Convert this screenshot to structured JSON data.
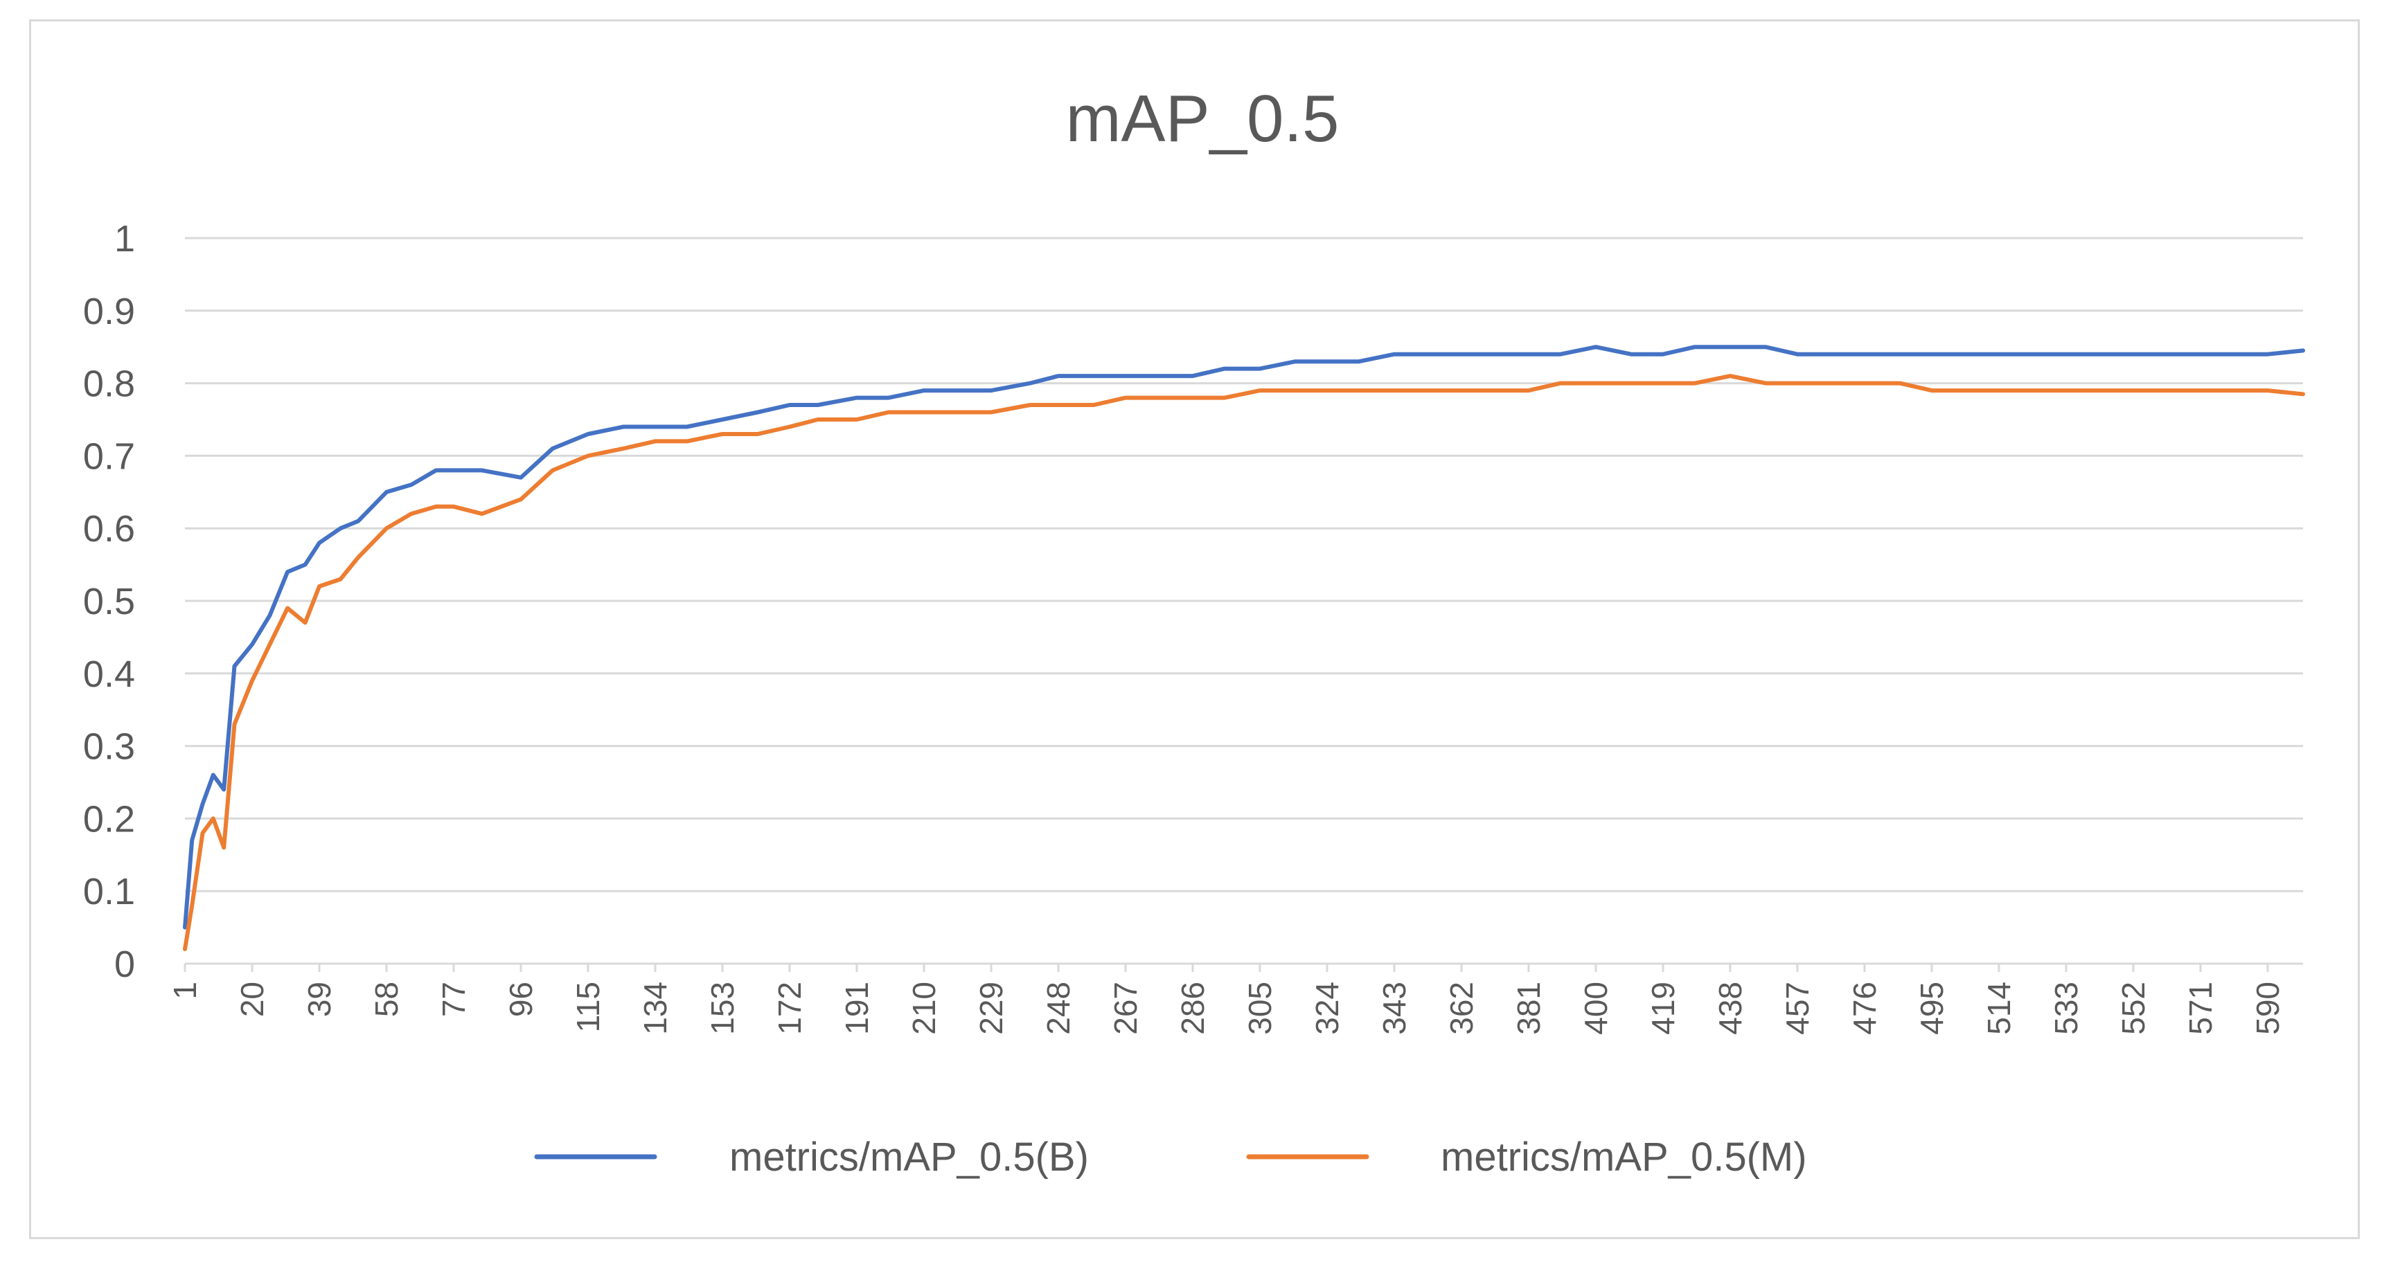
{
  "chart_data": {
    "type": "line",
    "title": "mAP_0.5",
    "xlabel": "",
    "ylabel": "",
    "ylim": [
      0,
      1
    ],
    "xlim": [
      1,
      600
    ],
    "y_ticks": [
      "0",
      "0.1",
      "0.2",
      "0.3",
      "0.4",
      "0.5",
      "0.6",
      "0.7",
      "0.8",
      "0.9",
      "1"
    ],
    "x_ticks": [
      "1",
      "20",
      "39",
      "58",
      "77",
      "96",
      "115",
      "134",
      "153",
      "172",
      "191",
      "210",
      "229",
      "248",
      "267",
      "286",
      "305",
      "324",
      "343",
      "362",
      "381",
      "400",
      "419",
      "438",
      "457",
      "476",
      "495",
      "514",
      "533",
      "552",
      "571",
      "590"
    ],
    "grid": true,
    "legend_position": "bottom",
    "series": [
      {
        "name": "metrics/mAP_0.5(B)",
        "color": "#4472C4",
        "x": [
          1,
          3,
          6,
          9,
          12,
          15,
          20,
          25,
          30,
          35,
          39,
          45,
          50,
          58,
          65,
          72,
          77,
          85,
          96,
          105,
          115,
          125,
          134,
          143,
          153,
          163,
          172,
          180,
          191,
          200,
          210,
          220,
          229,
          240,
          248,
          258,
          267,
          276,
          286,
          295,
          305,
          315,
          324,
          333,
          343,
          352,
          362,
          372,
          381,
          390,
          400,
          410,
          419,
          428,
          438,
          448,
          457,
          467,
          476,
          486,
          495,
          505,
          514,
          524,
          533,
          543,
          552,
          562,
          571,
          581,
          590,
          600
        ],
        "values": [
          0.05,
          0.17,
          0.22,
          0.26,
          0.24,
          0.41,
          0.44,
          0.48,
          0.54,
          0.55,
          0.58,
          0.6,
          0.61,
          0.65,
          0.66,
          0.68,
          0.68,
          0.68,
          0.67,
          0.71,
          0.73,
          0.74,
          0.74,
          0.74,
          0.75,
          0.76,
          0.77,
          0.77,
          0.78,
          0.78,
          0.79,
          0.79,
          0.79,
          0.8,
          0.81,
          0.81,
          0.81,
          0.81,
          0.81,
          0.82,
          0.82,
          0.83,
          0.83,
          0.83,
          0.84,
          0.84,
          0.84,
          0.84,
          0.84,
          0.84,
          0.85,
          0.84,
          0.84,
          0.85,
          0.85,
          0.85,
          0.84,
          0.84,
          0.84,
          0.84,
          0.84,
          0.84,
          0.84,
          0.84,
          0.84,
          0.84,
          0.84,
          0.84,
          0.84,
          0.84,
          0.84,
          0.845
        ]
      },
      {
        "name": "metrics/mAP_0.5(M)",
        "color": "#ED7D31",
        "x": [
          1,
          3,
          6,
          9,
          12,
          15,
          20,
          25,
          30,
          35,
          39,
          45,
          50,
          58,
          65,
          72,
          77,
          85,
          96,
          105,
          115,
          125,
          134,
          143,
          153,
          163,
          172,
          180,
          191,
          200,
          210,
          220,
          229,
          240,
          248,
          258,
          267,
          276,
          286,
          295,
          305,
          315,
          324,
          333,
          343,
          352,
          362,
          372,
          381,
          390,
          400,
          410,
          419,
          428,
          438,
          448,
          457,
          467,
          476,
          486,
          495,
          505,
          514,
          524,
          533,
          543,
          552,
          562,
          571,
          581,
          590,
          600
        ],
        "values": [
          0.02,
          0.08,
          0.18,
          0.2,
          0.16,
          0.33,
          0.39,
          0.44,
          0.49,
          0.47,
          0.52,
          0.53,
          0.56,
          0.6,
          0.62,
          0.63,
          0.63,
          0.62,
          0.64,
          0.68,
          0.7,
          0.71,
          0.72,
          0.72,
          0.73,
          0.73,
          0.74,
          0.75,
          0.75,
          0.76,
          0.76,
          0.76,
          0.76,
          0.77,
          0.77,
          0.77,
          0.78,
          0.78,
          0.78,
          0.78,
          0.79,
          0.79,
          0.79,
          0.79,
          0.79,
          0.79,
          0.79,
          0.79,
          0.79,
          0.8,
          0.8,
          0.8,
          0.8,
          0.8,
          0.81,
          0.8,
          0.8,
          0.8,
          0.8,
          0.8,
          0.79,
          0.79,
          0.79,
          0.79,
          0.79,
          0.79,
          0.79,
          0.79,
          0.79,
          0.79,
          0.79,
          0.785
        ]
      }
    ]
  }
}
